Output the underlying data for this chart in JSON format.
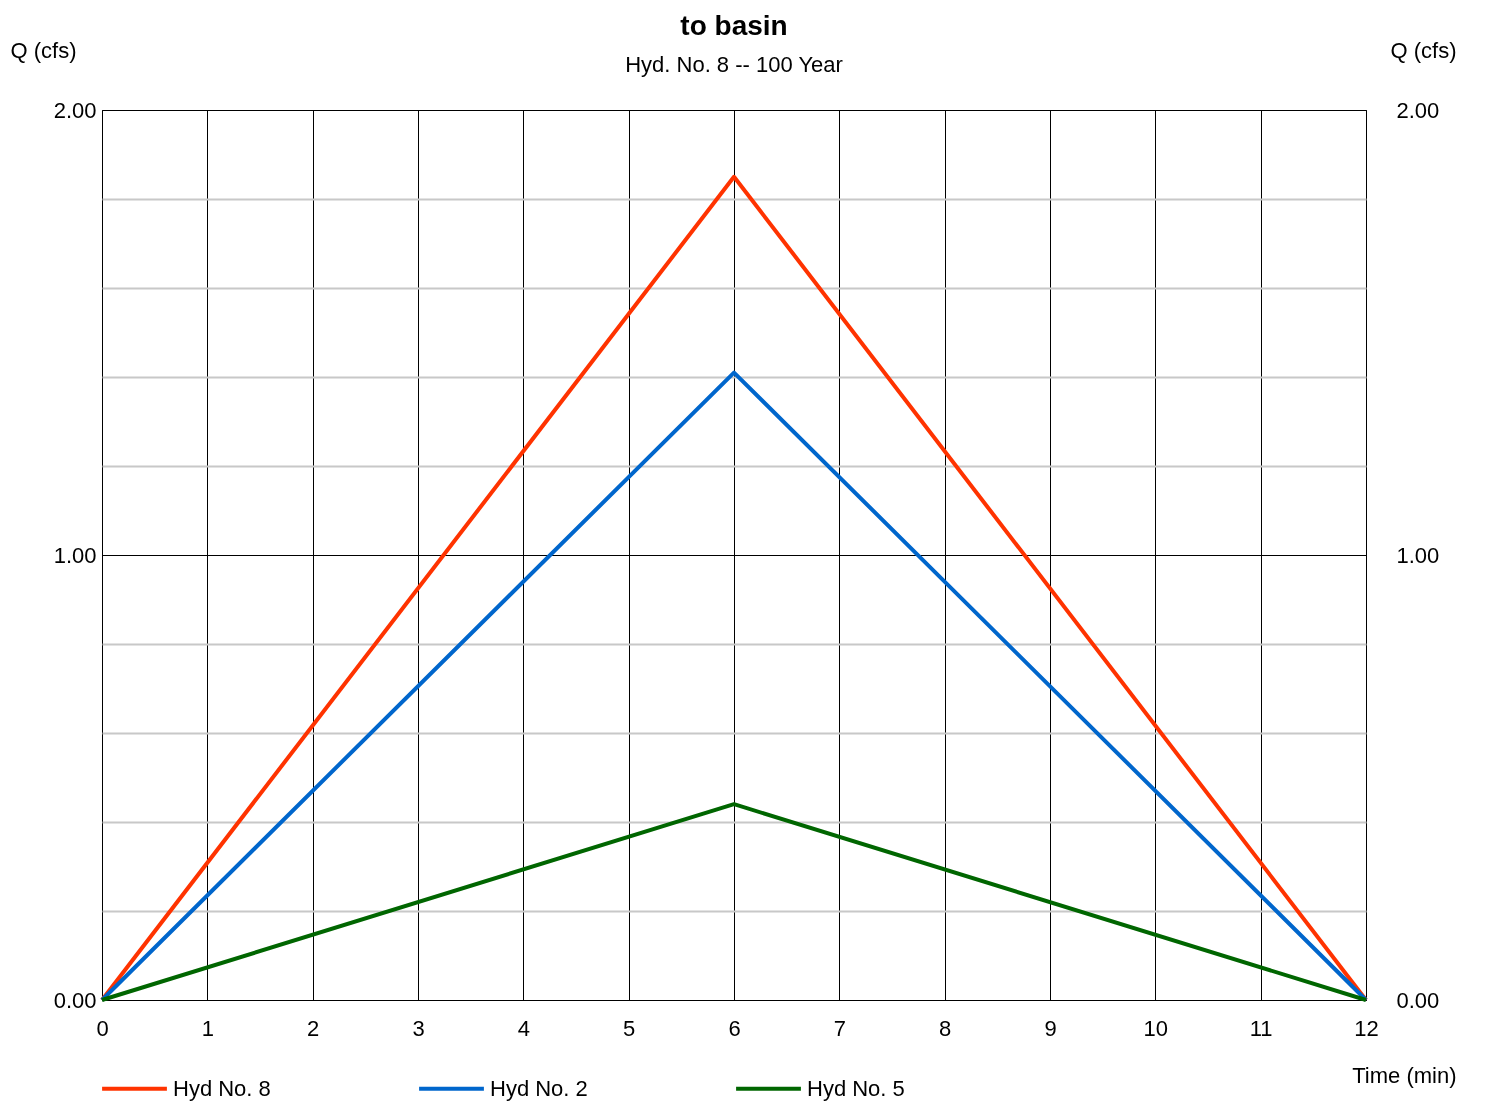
{
  "chart_data": {
    "type": "line",
    "title": "to basin",
    "subtitle": "Hyd. No. 8 -- 100 Year",
    "xlabel": "Time (min)",
    "ylabel": "Q (cfs)",
    "y2label": "Q (cfs)",
    "x": [
      0,
      6,
      12
    ],
    "series": [
      {
        "name": "Hyd No. 8",
        "color": "#ff3300",
        "values": [
          0,
          1.85,
          0
        ]
      },
      {
        "name": "Hyd No. 2",
        "color": "#0066cc",
        "values": [
          0,
          1.41,
          0
        ]
      },
      {
        "name": "Hyd No. 5",
        "color": "#006600",
        "values": [
          0,
          0.44,
          0
        ]
      }
    ],
    "xlim": [
      0,
      12
    ],
    "xticks": [
      0,
      1,
      2,
      3,
      4,
      5,
      6,
      7,
      8,
      9,
      10,
      11,
      12
    ],
    "ylim": [
      0,
      2
    ],
    "yticks": [
      {
        "value": 0,
        "label": "0.00"
      },
      {
        "value": 0.2,
        "label": null
      },
      {
        "value": 0.4,
        "label": null
      },
      {
        "value": 0.6,
        "label": null
      },
      {
        "value": 0.8,
        "label": null
      },
      {
        "value": 1,
        "label": "1.00"
      },
      {
        "value": 1.2,
        "label": null
      },
      {
        "value": 1.4,
        "label": null
      },
      {
        "value": 1.6,
        "label": null
      },
      {
        "value": 1.8,
        "label": null
      },
      {
        "value": 2,
        "label": "2.00"
      }
    ],
    "y2lim": [
      0,
      2
    ],
    "y2ticks": [
      {
        "value": 0,
        "label": "0.00"
      },
      {
        "value": 0.2,
        "label": null
      },
      {
        "value": 0.4,
        "label": null
      },
      {
        "value": 0.6,
        "label": null
      },
      {
        "value": 0.8,
        "label": null
      },
      {
        "value": 1,
        "label": "1.00"
      },
      {
        "value": 1.2,
        "label": null
      },
      {
        "value": 1.4,
        "label": null
      },
      {
        "value": 1.6,
        "label": null
      },
      {
        "value": 1.8,
        "label": null
      },
      {
        "value": 2,
        "label": "2.00"
      }
    ],
    "grid": true,
    "legend": "bottom",
    "line_style": "solid",
    "marker": "none"
  }
}
